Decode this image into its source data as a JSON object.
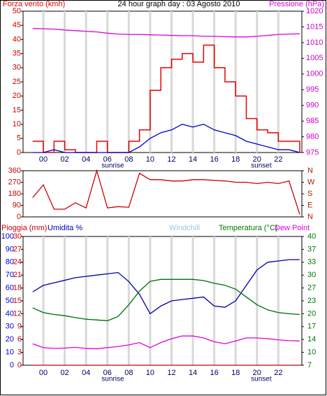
{
  "chart_data": [
    {
      "type": "line",
      "title": "24 hour graph day : 03 Agosto 2010",
      "x": [
        -1,
        0,
        1,
        2,
        3,
        4,
        5,
        6,
        7,
        8,
        9,
        10,
        11,
        12,
        13,
        14,
        15,
        16,
        17,
        18,
        19,
        20,
        21,
        22,
        23,
        24
      ],
      "xlim": [
        -1.9,
        24.2
      ],
      "xticks": [
        {
          "value": 0,
          "label": "00"
        },
        {
          "value": 2,
          "label": "02"
        },
        {
          "value": 4,
          "label": "04"
        },
        {
          "value": 6,
          "label": "06"
        },
        {
          "value": 8,
          "label": "08"
        },
        {
          "value": 10,
          "label": "10"
        },
        {
          "value": 12,
          "label": "12"
        },
        {
          "value": 14,
          "label": "14"
        },
        {
          "value": 16,
          "label": "16"
        },
        {
          "value": 18,
          "label": "18"
        },
        {
          "value": 20,
          "label": "20"
        },
        {
          "value": 22,
          "label": "22"
        }
      ],
      "ylim": [
        0,
        50
      ],
      "yticks": [
        0,
        5,
        10,
        15,
        20,
        25,
        30,
        35,
        40,
        45,
        50
      ],
      "y2lim": [
        975,
        1020
      ],
      "y2ticks": [
        975,
        980,
        985,
        990,
        995,
        1000,
        1005,
        1010,
        1015,
        1020
      ],
      "axis_colors": {
        "y": "#cc0000",
        "y2": "#cc00cc"
      },
      "grid": true,
      "annotations": [
        {
          "text": "sunrise",
          "x": 6.5
        },
        {
          "text": "sunset",
          "x": 20.4
        }
      ],
      "series": [
        {
          "name": "Forza vento (kmh)",
          "color": "#ee0000",
          "step": true,
          "values": [
            4,
            0,
            4,
            1,
            0,
            0,
            4,
            0,
            0,
            4,
            8,
            22,
            30,
            33,
            35,
            32,
            38,
            30,
            25,
            20,
            12,
            8,
            7,
            4,
            4,
            0
          ]
        },
        {
          "color": "#0000cc",
          "values": [
            0,
            0,
            1,
            0,
            0,
            0,
            0,
            0,
            0,
            0,
            2,
            5,
            7,
            8,
            10,
            9,
            10,
            8,
            7,
            6,
            4,
            3,
            2,
            1,
            1,
            0
          ]
        },
        {
          "name": "Pressione (hPa)",
          "color": "#dd00dd",
          "axis": "y2",
          "values": [
            1014.5,
            1014.4,
            1014.3,
            1014,
            1013.8,
            1013.6,
            1013.4,
            1013,
            1012.7,
            1012.6,
            1012.6,
            1012.5,
            1012.4,
            1012.3,
            1012.2,
            1012.2,
            1012,
            1012,
            1011.9,
            1011.8,
            1011.8,
            1012,
            1012.3,
            1012.6,
            1012.7,
            1012.8
          ]
        }
      ]
    },
    {
      "type": "line",
      "x": [
        -1,
        0,
        1,
        2,
        3,
        4,
        5,
        6,
        7,
        8,
        9,
        10,
        11,
        12,
        13,
        14,
        15,
        16,
        17,
        18,
        19,
        20,
        21,
        22,
        23,
        24
      ],
      "xlim": [
        -1.9,
        24.2
      ],
      "ylim": [
        0,
        360
      ],
      "yticks": [
        0,
        90,
        180,
        270,
        360
      ],
      "y2lim": [
        0,
        360
      ],
      "y2ticks": [
        {
          "value": 0,
          "label": "N"
        },
        {
          "value": 90,
          "label": "E"
        },
        {
          "value": 180,
          "label": "S"
        },
        {
          "value": 270,
          "label": "W"
        },
        {
          "value": 360,
          "label": "N"
        }
      ],
      "axis_colors": {
        "y": "#cc0000",
        "y2": "#aa2200"
      },
      "series": [
        {
          "color": "#cc0000",
          "values": [
            150,
            250,
            60,
            60,
            110,
            70,
            360,
            70,
            80,
            75,
            340,
            290,
            290,
            280,
            280,
            290,
            290,
            285,
            280,
            270,
            270,
            260,
            270,
            260,
            280,
            20
          ]
        }
      ]
    },
    {
      "type": "line",
      "x": [
        -1,
        0,
        1,
        2,
        3,
        4,
        5,
        6,
        7,
        8,
        9,
        10,
        11,
        12,
        13,
        14,
        15,
        16,
        17,
        18,
        19,
        20,
        21,
        22,
        23,
        24
      ],
      "xlim": [
        -1.9,
        24.2
      ],
      "xticks": [
        {
          "value": 0,
          "label": "00"
        },
        {
          "value": 2,
          "label": "02"
        },
        {
          "value": 4,
          "label": "04"
        },
        {
          "value": 6,
          "label": "06"
        },
        {
          "value": 8,
          "label": "08"
        },
        {
          "value": 10,
          "label": "10"
        },
        {
          "value": 12,
          "label": "12"
        },
        {
          "value": 14,
          "label": "14"
        },
        {
          "value": 16,
          "label": "16"
        },
        {
          "value": 18,
          "label": "18"
        },
        {
          "value": 20,
          "label": "20"
        },
        {
          "value": 22,
          "label": "22"
        }
      ],
      "ylim": [
        0,
        30
      ],
      "yticks": [
        0,
        3,
        6,
        9,
        12,
        15,
        18,
        21,
        24,
        27,
        30
      ],
      "y3lim": [
        0,
        100
      ],
      "y3ticks": [
        0,
        10,
        20,
        30,
        40,
        50,
        60,
        70,
        80,
        90,
        100
      ],
      "y2lim": [
        7,
        40
      ],
      "y2ticks": [
        7,
        {
          "value": 10.3,
          "label": "10"
        },
        {
          "value": 13.6,
          "label": "14"
        },
        {
          "value": 16.9,
          "label": "17"
        },
        {
          "value": 20.2,
          "label": "20"
        },
        {
          "value": 23.5,
          "label": "23"
        },
        {
          "value": 26.8,
          "label": "27"
        },
        {
          "value": 30.1,
          "label": "30"
        },
        {
          "value": 33.4,
          "label": "33"
        },
        {
          "value": 36.7,
          "label": "37"
        },
        40
      ],
      "axis_colors": {
        "y": "#cc0000",
        "y3": "#0000cc",
        "y2": "#007700"
      },
      "grid": true,
      "annotations": [
        {
          "text": "sunrise",
          "x": 6.5
        },
        {
          "text": "sunset",
          "x": 20.4
        }
      ],
      "series": [
        {
          "name": "Pioggia (mm)",
          "color": "#cc0000",
          "values": [
            0,
            0,
            0,
            0,
            0,
            0,
            0,
            0,
            0,
            0,
            0,
            0,
            0,
            0,
            0,
            0,
            0,
            0,
            0,
            0,
            0,
            0,
            0,
            0,
            0,
            0
          ]
        },
        {
          "name": "Umidita %",
          "color": "#0000aa",
          "axis": "y3",
          "values": [
            57,
            62,
            64,
            66,
            68,
            69,
            70,
            71,
            72,
            65,
            55,
            40,
            46,
            50,
            51,
            52,
            53,
            46,
            45,
            50,
            62,
            74,
            80,
            81,
            82,
            82
          ]
        },
        {
          "name": "Windchill",
          "color": "#99c4ee",
          "axis": "y2",
          "values": [
            21.7,
            20.5,
            20,
            19.7,
            19.2,
            18.8,
            18.6,
            18.4,
            19.5,
            22.5,
            26,
            28.5,
            29,
            29,
            29,
            29,
            28.7,
            28,
            27.5,
            26.5,
            24.5,
            22.5,
            21.2,
            20.5,
            20.2,
            20
          ]
        },
        {
          "name": "Temperatura (°C)",
          "color": "#007700",
          "axis": "y2",
          "values": [
            21.7,
            20.5,
            20,
            19.7,
            19.2,
            18.8,
            18.6,
            18.4,
            19.5,
            22.5,
            26,
            28.5,
            29,
            29,
            29,
            29,
            28.7,
            28,
            27.5,
            26.5,
            24.5,
            22.5,
            21.2,
            20.5,
            20.2,
            20
          ]
        },
        {
          "name": "Dew Point",
          "color": "#dd00dd",
          "axis": "y2",
          "values": [
            12.5,
            11.5,
            11.3,
            11.4,
            11.6,
            11.3,
            11.2,
            11.5,
            11.8,
            12.2,
            12.8,
            11.5,
            12.8,
            13.8,
            14.5,
            14.5,
            14,
            13,
            12.5,
            13.2,
            14,
            14,
            13.8,
            13.5,
            13.3,
            13.2
          ]
        }
      ]
    }
  ]
}
